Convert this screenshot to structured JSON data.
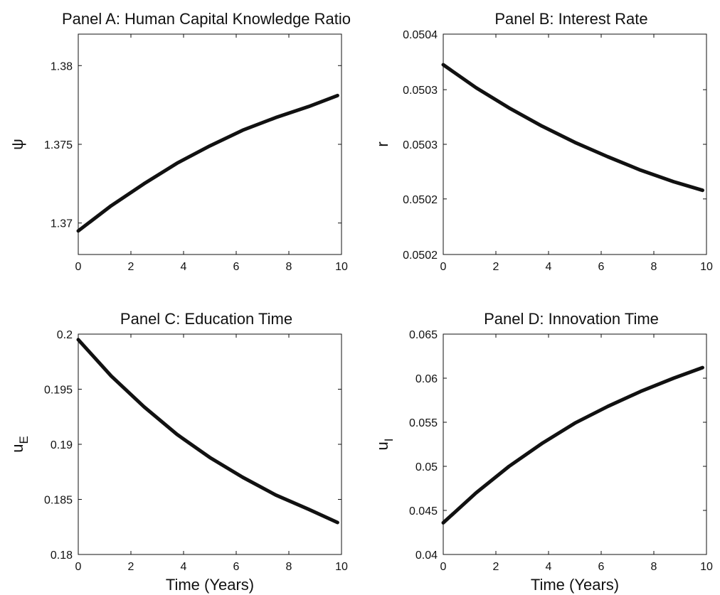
{
  "chart_data": [
    {
      "type": "line",
      "title": "Panel A: Human Capital Knowledge Ratio",
      "xlabel": "",
      "ylabel": "ψ",
      "xlim": [
        0,
        10
      ],
      "ylim": [
        1.368,
        1.382
      ],
      "xticks": [
        "0",
        "2",
        "4",
        "6",
        "8",
        "10"
      ],
      "yticks": [
        {
          "value": 1.37,
          "label": "1.37"
        },
        {
          "value": 1.375,
          "label": "1.375"
        },
        {
          "value": 1.38,
          "label": "1.38"
        }
      ],
      "x": [
        0,
        1.25,
        2.5,
        3.75,
        5,
        6.25,
        7.5,
        8.75,
        9.85
      ],
      "y": [
        1.3695,
        1.3711,
        1.3725,
        1.3738,
        1.3749,
        1.3759,
        1.3767,
        1.3774,
        1.3781
      ]
    },
    {
      "type": "line",
      "title": "Panel B: Interest Rate",
      "xlabel": "",
      "ylabel": "r",
      "xlim": [
        0,
        10
      ],
      "ylim": [
        0.05018,
        0.05041
      ],
      "xticks": [
        "0",
        "2",
        "4",
        "6",
        "8",
        "10"
      ],
      "yticks": [
        {
          "value": 0.05018,
          "label": "0.0502"
        },
        {
          "value": 0.050238,
          "label": "0.0502"
        },
        {
          "value": 0.050295,
          "label": "0.0503"
        },
        {
          "value": 0.050352,
          "label": "0.0503"
        },
        {
          "value": 0.05041,
          "label": "0.0504"
        }
      ],
      "x": [
        0,
        1.25,
        2.5,
        3.75,
        5,
        6.25,
        7.5,
        8.75,
        9.85
      ],
      "y": [
        0.050378,
        0.050354,
        0.050333,
        0.050314,
        0.050297,
        0.050282,
        0.050268,
        0.050256,
        0.050247
      ]
    },
    {
      "type": "line",
      "title": "Panel C: Education Time",
      "xlabel": "Time (Years)",
      "ylabel": "u",
      "ylabel_sub": "E",
      "xlim": [
        0,
        10
      ],
      "ylim": [
        0.18,
        0.2
      ],
      "xticks": [
        "0",
        "2",
        "4",
        "6",
        "8",
        "10"
      ],
      "yticks": [
        {
          "value": 0.18,
          "label": "0.18"
        },
        {
          "value": 0.185,
          "label": "0.185"
        },
        {
          "value": 0.19,
          "label": "0.19"
        },
        {
          "value": 0.195,
          "label": "0.195"
        },
        {
          "value": 0.2,
          "label": "0.2"
        }
      ],
      "x": [
        0,
        1.25,
        2.5,
        3.75,
        5,
        6.25,
        7.5,
        8.75,
        9.85
      ],
      "y": [
        0.1995,
        0.1962,
        0.1934,
        0.1909,
        0.1888,
        0.187,
        0.1854,
        0.1841,
        0.1829
      ]
    },
    {
      "type": "line",
      "title": "Panel D: Innovation Time",
      "xlabel": "Time (Years)",
      "ylabel": "u",
      "ylabel_sub": "I",
      "xlim": [
        0,
        10
      ],
      "ylim": [
        0.04,
        0.065
      ],
      "xticks": [
        "0",
        "2",
        "4",
        "6",
        "8",
        "10"
      ],
      "yticks": [
        {
          "value": 0.04,
          "label": "0.04"
        },
        {
          "value": 0.045,
          "label": "0.045"
        },
        {
          "value": 0.05,
          "label": "0.05"
        },
        {
          "value": 0.055,
          "label": "0.055"
        },
        {
          "value": 0.06,
          "label": "0.06"
        },
        {
          "value": 0.065,
          "label": "0.065"
        }
      ],
      "x": [
        0,
        1.25,
        2.5,
        3.75,
        5,
        6.25,
        7.5,
        8.75,
        9.85
      ],
      "y": [
        0.0436,
        0.047,
        0.05,
        0.0526,
        0.0549,
        0.0568,
        0.0585,
        0.06,
        0.0612
      ]
    }
  ]
}
